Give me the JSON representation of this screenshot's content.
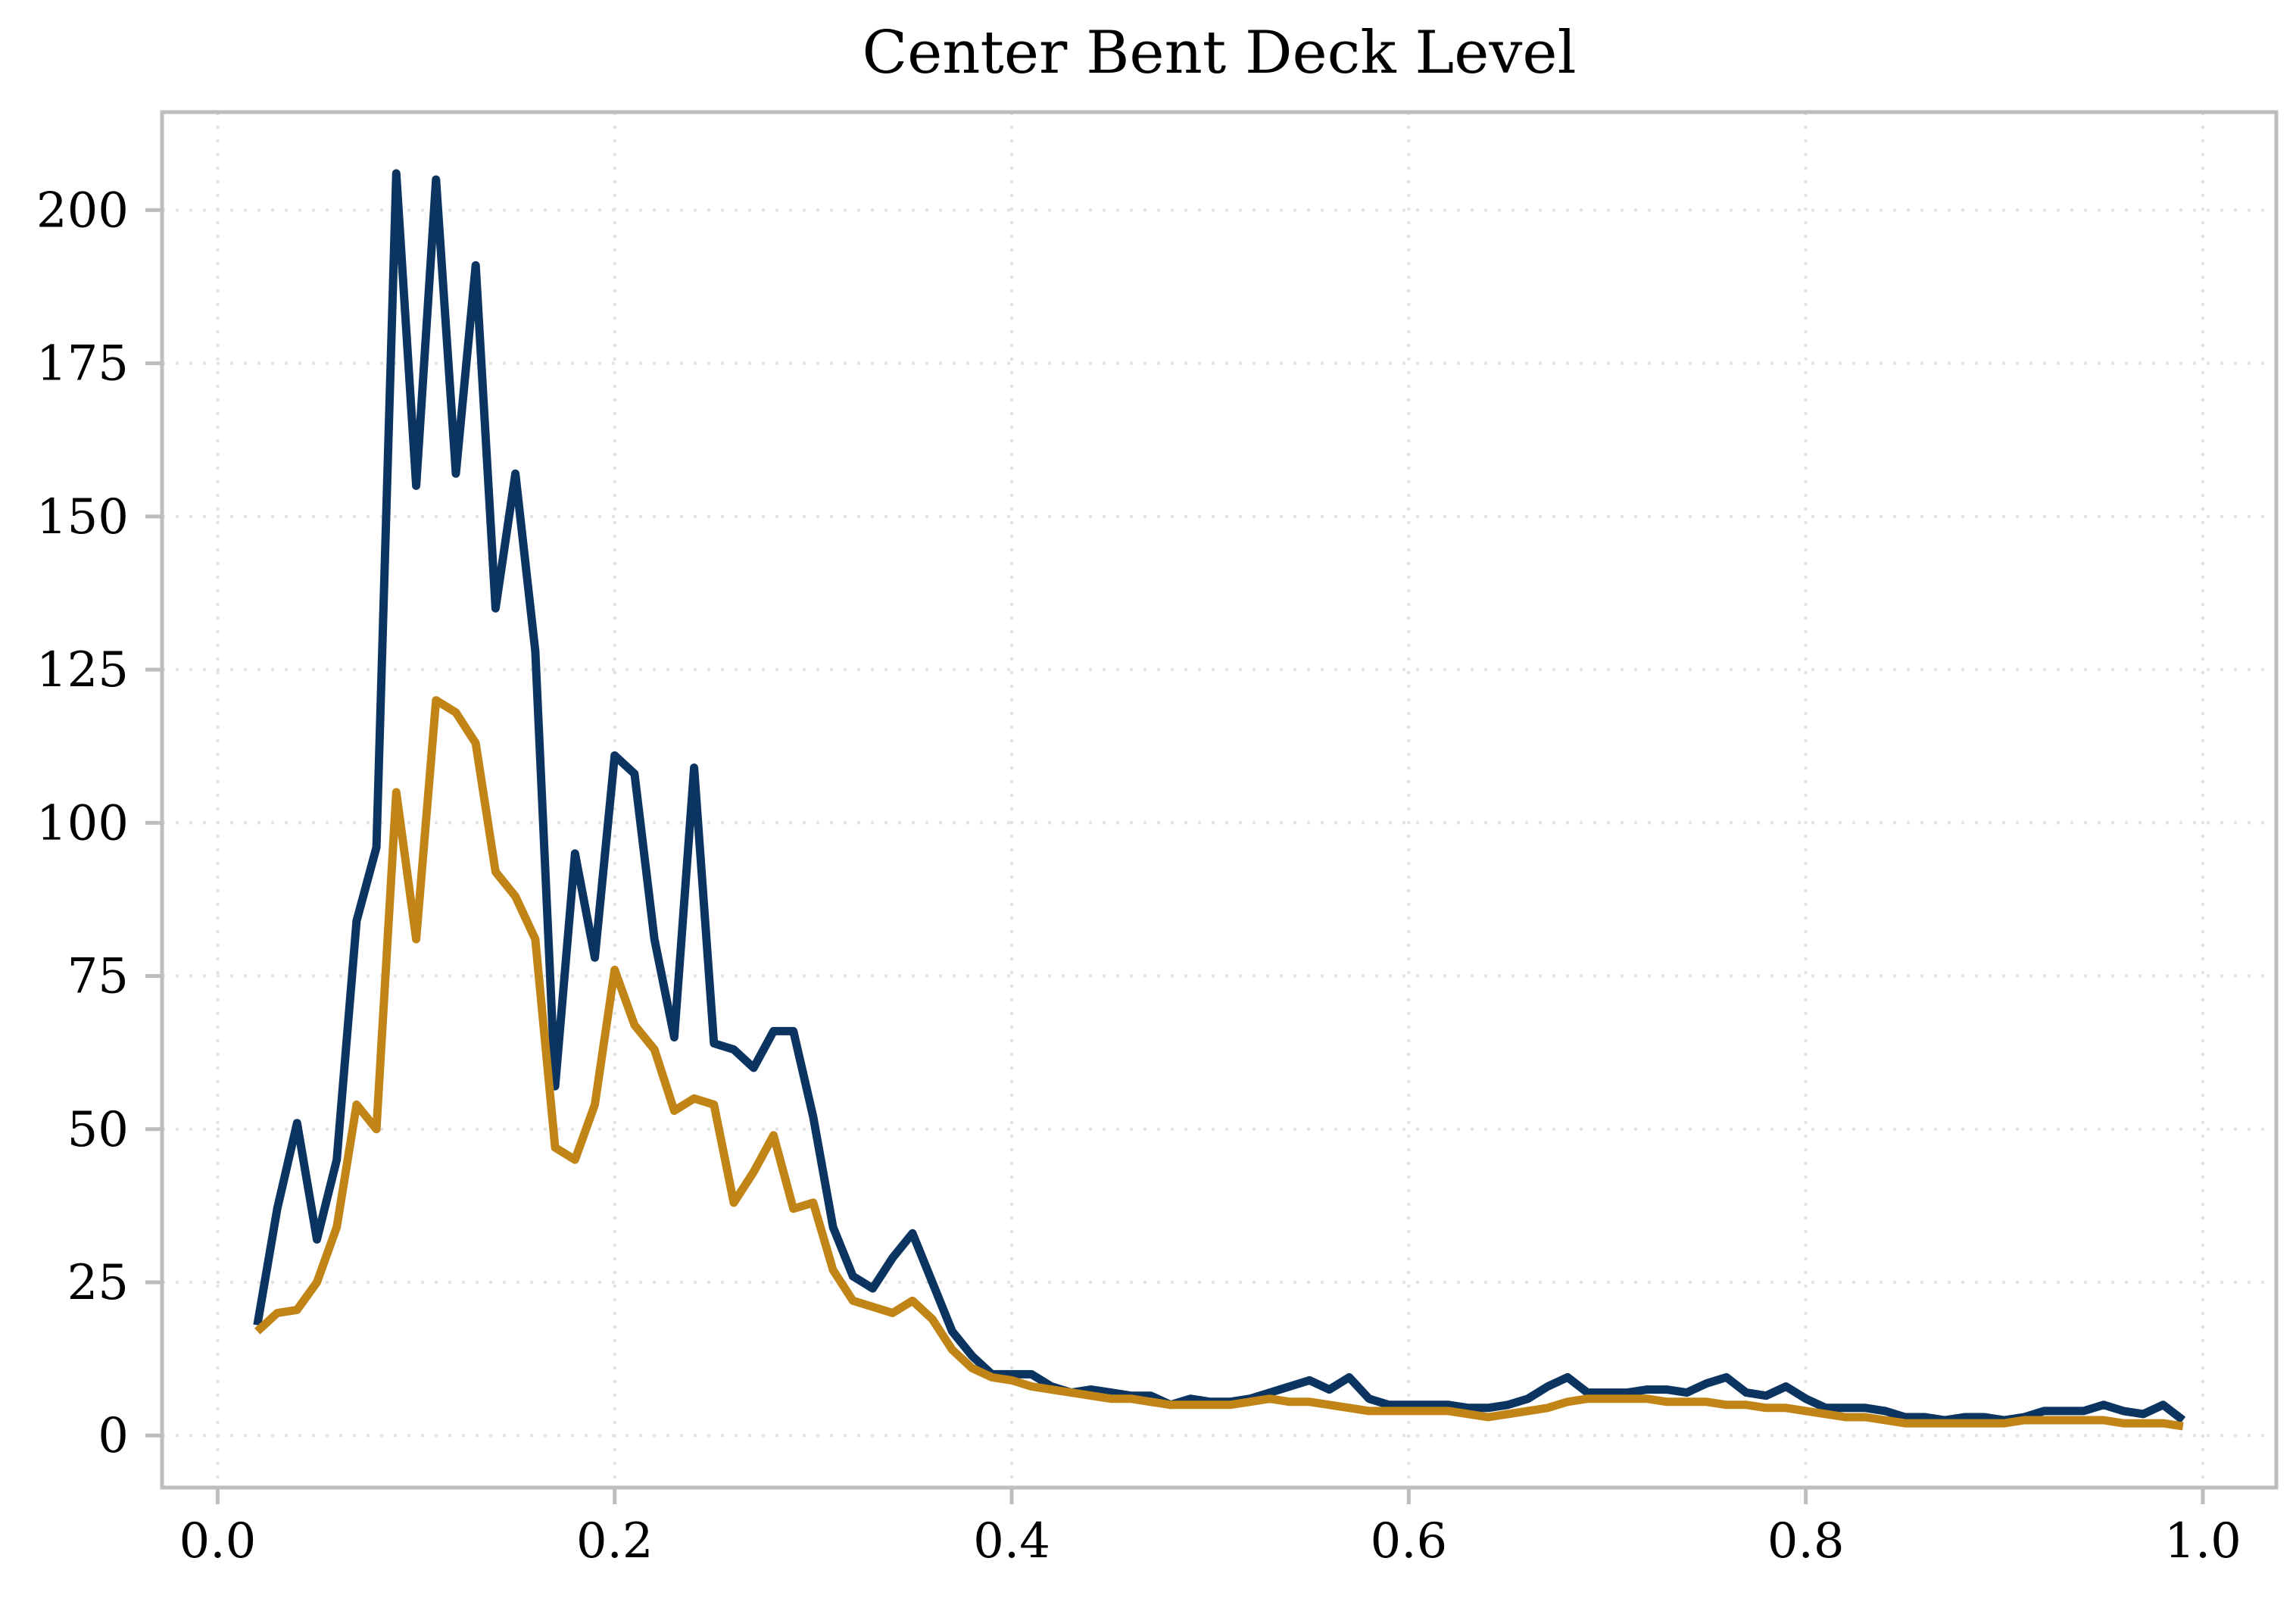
{
  "chart_data": {
    "type": "line",
    "title": "Center Bent Deck Level",
    "xlabel": "",
    "ylabel": "",
    "xlim": [
      -0.028,
      1.037
    ],
    "ylim": [
      -8.5,
      216
    ],
    "xticks": [
      0.0,
      0.2,
      0.4,
      0.6,
      0.8,
      1.0
    ],
    "xtick_labels": [
      "0.0",
      "0.2",
      "0.4",
      "0.6",
      "0.8",
      "1.0"
    ],
    "yticks": [
      0,
      25,
      50,
      75,
      100,
      125,
      150,
      175,
      200
    ],
    "ytick_labels": [
      "0",
      "25",
      "50",
      "75",
      "100",
      "125",
      "150",
      "175",
      "200"
    ],
    "grid": true,
    "x": [
      0.02,
      0.03,
      0.04,
      0.05,
      0.06,
      0.07,
      0.08,
      0.09,
      0.1,
      0.11,
      0.12,
      0.13,
      0.14,
      0.15,
      0.16,
      0.17,
      0.18,
      0.19,
      0.2,
      0.21,
      0.22,
      0.23,
      0.24,
      0.25,
      0.26,
      0.27,
      0.28,
      0.29,
      0.3,
      0.31,
      0.32,
      0.33,
      0.34,
      0.35,
      0.36,
      0.37,
      0.38,
      0.39,
      0.4,
      0.41,
      0.42,
      0.43,
      0.44,
      0.45,
      0.46,
      0.47,
      0.48,
      0.49,
      0.5,
      0.51,
      0.52,
      0.53,
      0.54,
      0.55,
      0.56,
      0.57,
      0.58,
      0.59,
      0.6,
      0.61,
      0.62,
      0.63,
      0.64,
      0.65,
      0.66,
      0.67,
      0.68,
      0.69,
      0.7,
      0.71,
      0.72,
      0.73,
      0.74,
      0.75,
      0.76,
      0.77,
      0.78,
      0.79,
      0.8,
      0.81,
      0.82,
      0.83,
      0.84,
      0.85,
      0.86,
      0.87,
      0.88,
      0.89,
      0.9,
      0.91,
      0.92,
      0.93,
      0.94,
      0.95,
      0.96,
      0.97,
      0.98,
      0.99
    ],
    "series": [
      {
        "color": "#0b3560",
        "values": [
          18,
          37,
          51,
          32,
          45,
          84,
          96,
          206,
          155,
          205,
          157,
          191,
          135,
          157,
          128,
          57,
          95,
          78,
          111,
          108,
          81,
          65,
          109,
          64,
          63,
          60,
          66,
          66,
          52,
          34,
          26,
          24,
          29,
          33,
          25,
          17,
          13,
          10,
          10,
          10,
          8,
          7,
          7.5,
          7,
          6.5,
          6.5,
          5,
          6,
          5.5,
          5.5,
          6,
          7,
          8,
          9,
          7.5,
          9.5,
          6,
          5,
          5,
          5,
          5,
          4.5,
          4.5,
          5,
          6,
          8,
          9.5,
          7,
          7,
          7,
          7.5,
          7.5,
          7,
          8.5,
          9.5,
          7,
          6.5,
          8,
          6,
          4.5,
          4.5,
          4.5,
          4,
          3,
          3,
          2.5,
          3,
          3,
          2.5,
          3,
          4,
          4,
          4,
          5,
          4,
          3.5,
          5,
          2.5
        ]
      },
      {
        "color": "#c08516",
        "values": [
          17,
          20,
          20.5,
          25,
          34,
          54,
          50,
          105,
          81,
          120,
          118,
          113,
          92,
          88,
          81,
          47,
          45,
          54,
          76,
          67,
          63,
          53,
          55,
          54,
          38,
          43,
          49,
          37,
          38,
          27,
          22,
          21,
          20,
          22,
          19,
          14,
          11,
          9.5,
          9,
          8,
          7.5,
          7,
          6.5,
          6,
          6,
          5.5,
          5,
          5,
          5,
          5,
          5.5,
          6,
          5.5,
          5.5,
          5,
          4.5,
          4,
          4,
          4,
          4,
          4,
          3.5,
          3,
          3.5,
          4,
          4.5,
          5.5,
          6,
          6,
          6,
          6,
          5.5,
          5.5,
          5.5,
          5,
          5,
          4.5,
          4.5,
          4,
          3.5,
          3,
          3,
          2.5,
          2,
          2,
          2,
          2,
          2,
          2,
          2.5,
          2.5,
          2.5,
          2.5,
          2.5,
          2,
          2,
          2,
          1.5
        ]
      }
    ]
  }
}
